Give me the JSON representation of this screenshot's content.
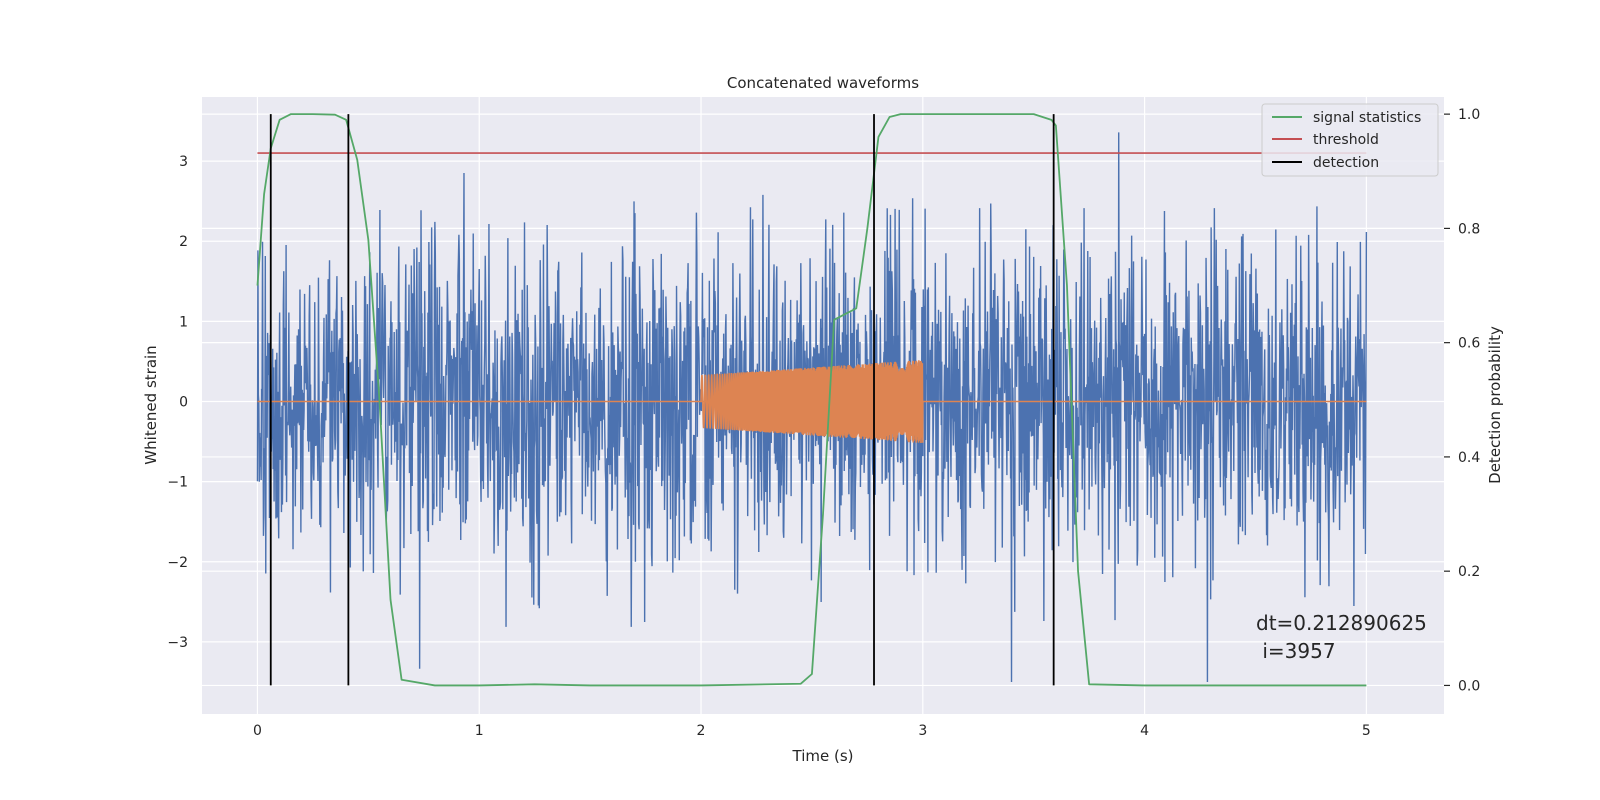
{
  "chart_data": {
    "type": "line",
    "title": "Concatenated waveforms",
    "xlabel": "Time (s)",
    "ylabel": "Whitened strain",
    "y2label": "Detection probability",
    "xlim": [
      -0.25,
      5.35
    ],
    "ylim": [
      -3.9,
      3.8
    ],
    "y2lim": [
      -0.05,
      1.03
    ],
    "grid": true,
    "legend_position": "top-right",
    "x_ticks": [
      0,
      1,
      2,
      3,
      4,
      5
    ],
    "y_ticks": [
      -3,
      -2,
      -1,
      0,
      1,
      2,
      3
    ],
    "y2_ticks": [
      0.0,
      0.2,
      0.4,
      0.6,
      0.8,
      1.0
    ],
    "x_tick_labels": [
      "0",
      "1",
      "2",
      "3",
      "4",
      "5"
    ],
    "y_tick_labels": [
      "−3",
      "−2",
      "−1",
      "0",
      "1",
      "2",
      "3"
    ],
    "y2_tick_labels": [
      "0.0",
      "0.2",
      "0.4",
      "0.6",
      "0.8",
      "1.0"
    ],
    "series": [
      {
        "name": "",
        "axis": "left",
        "description": "whitened strain noise, samples from t=0 to t=5 s, amplitude roughly within ±3.4",
        "x_range": [
          0,
          5
        ],
        "amplitude_envelope": [
          -3.5,
          3.45
        ]
      },
      {
        "name": "",
        "axis": "left",
        "description": "injected chirp waveform",
        "x_range": [
          2.0,
          3.0
        ],
        "amplitude_start": 0.33,
        "amplitude_end": 0.52,
        "baseline": 0
      },
      {
        "name": "signal statistics",
        "axis": "right",
        "x": [
          0.0,
          0.03,
          0.06,
          0.1,
          0.15,
          0.25,
          0.35,
          0.4,
          0.45,
          0.5,
          0.55,
          0.6,
          0.65,
          0.8,
          1.0,
          1.25,
          1.5,
          2.0,
          2.45,
          2.5,
          2.55,
          2.6,
          2.65,
          2.7,
          2.75,
          2.8,
          2.85,
          2.9,
          3.0,
          3.5,
          3.58,
          3.6,
          3.65,
          3.7,
          3.75,
          4.0,
          4.5,
          5.0
        ],
        "y": [
          0.7,
          0.86,
          0.94,
          0.99,
          1.0,
          1.0,
          0.999,
          0.99,
          0.92,
          0.78,
          0.5,
          0.15,
          0.01,
          0.0,
          0.0,
          0.002,
          0.0,
          0.0,
          0.003,
          0.02,
          0.3,
          0.64,
          0.65,
          0.66,
          0.8,
          0.96,
          0.995,
          1.0,
          1.0,
          1.0,
          0.99,
          0.98,
          0.7,
          0.2,
          0.002,
          0.0,
          0.0,
          0.0
        ]
      },
      {
        "name": "threshold",
        "axis": "left",
        "x": [
          0,
          5
        ],
        "y": [
          3.1,
          3.1
        ]
      }
    ],
    "detections": {
      "name": "detection",
      "x": [
        0.06,
        0.41,
        2.78,
        3.59
      ],
      "y2_range": [
        0.0,
        1.0
      ]
    },
    "legend": [
      "signal statistics",
      "threshold",
      "detection"
    ],
    "annotation": {
      "line1": "dt=0.212890625",
      "line2": " i=3957"
    },
    "colors": {
      "strain": "#4c72b0",
      "injection": "#dd8452",
      "signal": "#55a868",
      "threshold": "#c44e52",
      "detection": "#000000",
      "axes_bg": "#eaeaf2",
      "grid": "#ffffff"
    }
  }
}
